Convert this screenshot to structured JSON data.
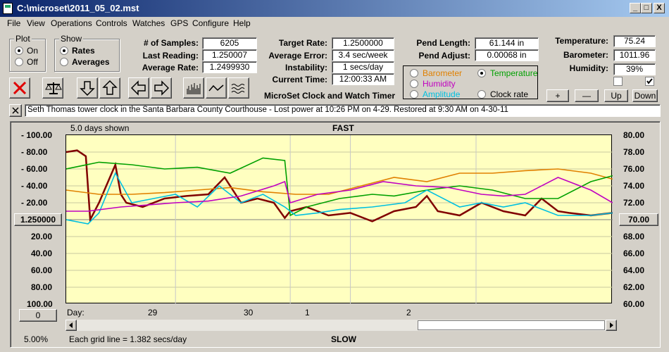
{
  "window": {
    "title": "C:\\microset\\2011_05_02.mst",
    "minimize": "_",
    "maximize": "□",
    "close": "X"
  },
  "menu": [
    "File",
    "View",
    "Operations",
    "Controls",
    "Watches",
    "GPS",
    "Configure",
    "Help"
  ],
  "plot_group": {
    "label": "Plot",
    "options": [
      "On",
      "Off"
    ],
    "selected": "On"
  },
  "show_group": {
    "label": "Show",
    "options": [
      "Rates",
      "Averages"
    ],
    "selected": "Rates"
  },
  "stats": {
    "samples_label": "# of Samples:",
    "samples": "6205",
    "last_reading_label": "Last Reading:",
    "last_reading": "1.250007",
    "average_rate_label": "Average Rate:",
    "average_rate": "1.2499930",
    "target_rate_label": "Target Rate:",
    "target_rate": "1.2500000",
    "average_error_label": "Average Error:",
    "average_error": "3.4 sec/week",
    "instability_label": "Instability:",
    "instability": "1 secs/day",
    "current_time_label": "Current Time:",
    "current_time": "12:00:33 AM",
    "pend_length_label": "Pend Length:",
    "pend_length": "61.144 in",
    "pend_adjust_label": "Pend Adjust:",
    "pend_adjust": "0.00068 in",
    "temperature_label": "Temperature:",
    "temperature": "75.24",
    "barometer_label": "Barometer:",
    "barometer": "1011.96",
    "humidity_label": "Humidity:",
    "humidity": "39%"
  },
  "app_title": "MicroSet Clock and Watch Timer",
  "right_axis_selector": {
    "options": [
      {
        "label": "Barometer",
        "color": "#e08000",
        "selected": false
      },
      {
        "label": "Temperature",
        "color": "#00a000",
        "selected": true
      },
      {
        "label": "Humidity",
        "color": "#c000c0",
        "selected": false
      },
      {
        "label": "Amplitude",
        "color": "#00c0e0",
        "selected": false
      },
      {
        "label": "Clock rate",
        "color": "#000000",
        "selected": false
      }
    ]
  },
  "adjust_buttons": [
    "+",
    "—",
    "Up",
    "Down"
  ],
  "checkboxes": [
    false,
    true
  ],
  "notes": "Seth Thomas tower clock in the Santa Barbara County Courthouse -  Lost power at 10:26 PM on 4-29. Restored at 9:30 AM on 4-30-11",
  "graph": {
    "days_shown": "5.0 days shown",
    "top_label": "FAST",
    "bottom_label": "SLOW",
    "center_left": "1.250000",
    "center_right": "70.00",
    "left_zero_button": "0",
    "scale_pct": "5.00%",
    "grid_note": "Each grid line = 1.382 secs/day",
    "day_label": "Day:",
    "day_ticks": [
      "29",
      "30",
      "1",
      "2"
    ],
    "left_ticks_top": [
      "- 100.00",
      "- 80.00",
      "- 60.00",
      "- 40.00",
      "- 20.00"
    ],
    "left_ticks_bottom": [
      "20.00",
      "40.00",
      "60.00",
      "80.00",
      "100.00"
    ],
    "right_ticks": [
      "80.00",
      "78.00",
      "76.00",
      "74.00",
      "72.00",
      "68.00",
      "66.00",
      "64.00",
      "62.00",
      "60.00"
    ]
  },
  "chart_data": {
    "type": "line",
    "x_unit": "days",
    "xlim": [
      0,
      5
    ],
    "ylim": [
      -100,
      100
    ],
    "series": [
      {
        "name": "Clock rate",
        "color": "#800000",
        "x": [
          0,
          0.1,
          0.18,
          0.22,
          0.3,
          0.45,
          0.5,
          0.55,
          0.7,
          0.9,
          1.1,
          1.3,
          1.45,
          1.6,
          1.75,
          1.9,
          2.0,
          2.05,
          2.2,
          2.4,
          2.6,
          2.8,
          3.0,
          3.2,
          3.3,
          3.4,
          3.6,
          3.8,
          4.0,
          4.2,
          4.35,
          4.5,
          4.6,
          4.8,
          5.0
        ],
        "y": [
          -80,
          -82,
          -75,
          0,
          -20,
          -65,
          -30,
          -20,
          -15,
          -25,
          -28,
          -30,
          -50,
          -20,
          -25,
          -20,
          -2,
          -10,
          -15,
          -5,
          -8,
          2,
          -10,
          -15,
          -28,
          -10,
          -5,
          -20,
          -10,
          -5,
          -25,
          -10,
          -8,
          -5,
          -8
        ]
      },
      {
        "name": "Barometer",
        "color": "#e08000",
        "x": [
          0,
          0.3,
          0.6,
          0.9,
          1.2,
          1.5,
          1.8,
          2.1,
          2.4,
          2.7,
          3.0,
          3.3,
          3.6,
          3.9,
          4.2,
          4.5,
          4.8,
          5.0
        ],
        "y": [
          -35,
          -30,
          -30,
          -32,
          -35,
          -38,
          -33,
          -30,
          -30,
          -40,
          -50,
          -45,
          -55,
          -55,
          -58,
          -60,
          -55,
          -48
        ]
      },
      {
        "name": "Temperature",
        "color": "#00a000",
        "x": [
          0,
          0.3,
          0.6,
          0.9,
          1.2,
          1.5,
          1.8,
          2.0,
          2.05,
          2.2,
          2.5,
          2.8,
          3.0,
          3.3,
          3.6,
          3.9,
          4.2,
          4.5,
          4.8,
          5.0
        ],
        "y": [
          -60,
          -68,
          -65,
          -60,
          -62,
          -55,
          -73,
          -70,
          -5,
          -15,
          -25,
          -30,
          -28,
          -35,
          -40,
          -35,
          -25,
          -25,
          -45,
          -52
        ]
      },
      {
        "name": "Amplitude",
        "color": "#00c0e0",
        "x": [
          0,
          0.2,
          0.3,
          0.45,
          0.6,
          0.8,
          1.0,
          1.2,
          1.4,
          1.6,
          1.8,
          2.0,
          2.1,
          2.3,
          2.5,
          2.8,
          3.1,
          3.3,
          3.6,
          3.8,
          4.0,
          4.2,
          4.5,
          4.8,
          5.0
        ],
        "y": [
          0,
          5,
          -8,
          -55,
          -20,
          -25,
          -30,
          -15,
          -40,
          -20,
          -30,
          -15,
          -5,
          -8,
          -12,
          -15,
          -20,
          -35,
          -15,
          -20,
          -15,
          -20,
          -5,
          -5,
          -8
        ]
      },
      {
        "name": "Humidity",
        "color": "#c000c0",
        "x": [
          0,
          0.2,
          0.5,
          0.8,
          1.0,
          1.3,
          1.6,
          1.9,
          2.0,
          2.05,
          2.3,
          2.6,
          2.9,
          3.2,
          3.5,
          3.8,
          4.0,
          4.2,
          4.5,
          4.8,
          5.0
        ],
        "y": [
          -10,
          -10,
          -15,
          -18,
          -20,
          -22,
          -28,
          -40,
          -45,
          -20,
          -30,
          -35,
          -45,
          -40,
          -38,
          -30,
          -28,
          -30,
          -50,
          -35,
          -20
        ]
      }
    ]
  }
}
